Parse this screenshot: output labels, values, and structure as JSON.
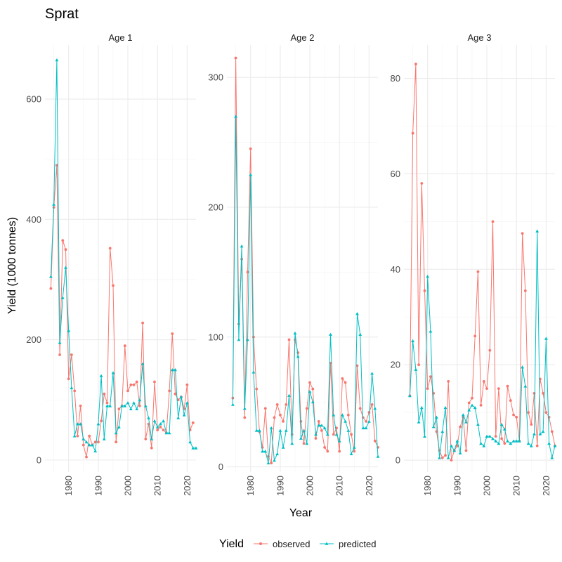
{
  "chart_data": {
    "type": "line",
    "title": "Sprat",
    "xlabel": "Year",
    "ylabel": "Yield (1000 tonnes)",
    "legend": {
      "title": "Yield",
      "position": "bottom"
    },
    "colors": {
      "observed": "#F8766D",
      "predicted": "#00BFC4"
    },
    "x_ticks": [
      1980,
      1990,
      2000,
      2010,
      2020
    ],
    "xlim": [
      1972,
      2023
    ],
    "years": [
      1974,
      1975,
      1976,
      1977,
      1978,
      1979,
      1980,
      1981,
      1982,
      1983,
      1984,
      1985,
      1986,
      1987,
      1988,
      1989,
      1990,
      1991,
      1992,
      1993,
      1994,
      1995,
      1996,
      1997,
      1998,
      1999,
      2000,
      2001,
      2002,
      2003,
      2004,
      2005,
      2006,
      2007,
      2008,
      2009,
      2010,
      2011,
      2012,
      2013,
      2014,
      2015,
      2016,
      2017,
      2018,
      2019,
      2020,
      2021,
      2022,
      2023
    ],
    "panels": [
      {
        "strip": "Age 1",
        "ylim": [
          -20,
          690
        ],
        "y_ticks": [
          0,
          200,
          400,
          600
        ],
        "series": [
          {
            "name": "observed",
            "values": [
              285,
              420,
              490,
              175,
              365,
              350,
              135,
              175,
              115,
              40,
              90,
              25,
              5,
              40,
              25,
              30,
              30,
              65,
              110,
              95,
              352,
              290,
              30,
              85,
              90,
              190,
              115,
              125,
              125,
              130,
              90,
              228,
              35,
              60,
              20,
              130,
              50,
              55,
              50,
              45,
              115,
              210,
              110,
              100,
              105,
              85,
              125,
              50,
              62,
              null
            ]
          },
          {
            "name": "predicted",
            "values": [
              305,
              425,
              665,
              195,
              270,
              320,
              215,
              120,
              40,
              60,
              60,
              35,
              30,
              25,
              25,
              15,
              60,
              140,
              35,
              90,
              90,
              145,
              45,
              55,
              90,
              90,
              95,
              85,
              95,
              85,
              100,
              160,
              90,
              70,
              35,
              65,
              55,
              60,
              65,
              45,
              45,
              150,
              150,
              70,
              105,
              75,
              95,
              30,
              20,
              20
            ]
          }
        ]
      },
      {
        "strip": "Age 2",
        "ylim": [
          -4,
          325
        ],
        "y_ticks": [
          0,
          100,
          200,
          300
        ],
        "series": [
          {
            "name": "observed",
            "values": [
              53,
              315,
              110,
              160,
              38,
              150,
              245,
              100,
              60,
              27,
              15,
              45,
              8,
              3,
              38,
              48,
              40,
              35,
              48,
              98,
              25,
              98,
              88,
              35,
              18,
              45,
              65,
              60,
              22,
              35,
              28,
              15,
              12,
              80,
              25,
              30,
              12,
              68,
              65,
              40,
              25,
              12,
              78,
              45,
              38,
              35,
              42,
              48,
              20,
              15
            ]
          },
          {
            "name": "predicted",
            "values": [
              48,
              270,
              98,
              170,
              45,
              98,
              225,
              73,
              28,
              28,
              12,
              12,
              3,
              30,
              5,
              10,
              28,
              15,
              28,
              55,
              18,
              103,
              85,
              22,
              28,
              18,
              58,
              50,
              25,
              32,
              32,
              30,
              25,
              102,
              40,
              25,
              20,
              40,
              35,
              28,
              10,
              15,
              118,
              102,
              30,
              30,
              35,
              72,
              45,
              8
            ]
          }
        ]
      },
      {
        "strip": "Age 3",
        "ylim": [
          -2.5,
          87
        ],
        "y_ticks": [
          0,
          20,
          40,
          60,
          80
        ],
        "series": [
          {
            "name": "observed",
            "values": [
              13.5,
              68.5,
              83,
              20,
              58,
              35.5,
              15,
              17.5,
              14,
              6,
              2,
              0.5,
              1,
              16.5,
              0,
              2,
              3,
              7,
              9,
              2,
              12,
              13,
              26,
              39.5,
              11.5,
              16.5,
              15,
              23,
              50,
              5,
              15,
              4.5,
              3.5,
              15.5,
              12.5,
              9.5,
              9,
              4,
              47.5,
              35.5,
              10,
              7.5,
              14,
              3,
              17,
              14,
              10,
              9,
              6,
              3
            ]
          },
          {
            "name": "predicted",
            "values": [
              13.5,
              25,
              19,
              8,
              11,
              5,
              38.5,
              27,
              7,
              9,
              0.5,
              6,
              11,
              0.5,
              3,
              2,
              4,
              1.5,
              9.5,
              8,
              10.5,
              11.5,
              11,
              7.5,
              3.5,
              3,
              5,
              5,
              4.5,
              4,
              3.5,
              7.5,
              6.5,
              4,
              3.5,
              4,
              4,
              4,
              19.5,
              15.5,
              3.5,
              3,
              5.5,
              48,
              5.5,
              6,
              25.5,
              3.5,
              0.5,
              3
            ]
          }
        ]
      }
    ]
  }
}
